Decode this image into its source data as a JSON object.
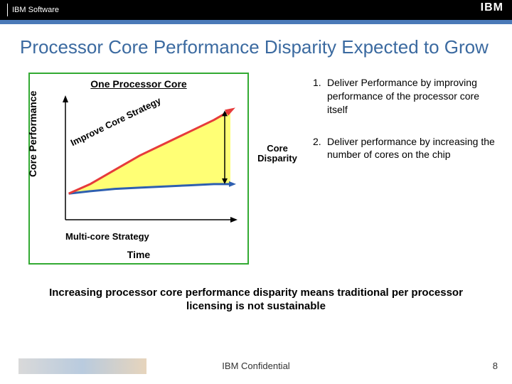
{
  "header": {
    "brand_text": "IBM Software",
    "logo_text": "IBM"
  },
  "title": "Processor Core Performance Disparity Expected to Grow",
  "chart": {
    "type": "line",
    "box_title": "One Processor Core",
    "y_label": "Core Performance",
    "x_label": "Time",
    "upper_curve_label": "Improve Core Strategy",
    "lower_curve_label": "Multi-core Strategy",
    "disparity_label": "Core Disparity",
    "colors": {
      "box_border": "#33aa33",
      "axis": "#000000",
      "upper_curve": "#e63b3b",
      "lower_curve": "#2e5fb0",
      "disparity_fill": "#ffff66",
      "arrow": "#000000",
      "background": "#ffffff"
    },
    "axis": {
      "x_range": [
        0,
        100
      ],
      "y_range": [
        0,
        100
      ],
      "line_width": 1.5
    },
    "upper_curve_points": [
      [
        2,
        78
      ],
      [
        15,
        70
      ],
      [
        30,
        58
      ],
      [
        45,
        46
      ],
      [
        60,
        36
      ],
      [
        75,
        26
      ],
      [
        90,
        16
      ],
      [
        100,
        8
      ]
    ],
    "lower_curve_points": [
      [
        2,
        78
      ],
      [
        15,
        76
      ],
      [
        30,
        74
      ],
      [
        45,
        73
      ],
      [
        60,
        72
      ],
      [
        75,
        71
      ],
      [
        90,
        70
      ],
      [
        100,
        70
      ]
    ],
    "curve_line_width": 3,
    "arrow_head_size": 8
  },
  "points": [
    {
      "num": "1.",
      "text": "Deliver Performance by improving performance of the processor core itself"
    },
    {
      "num": "2.",
      "text": "Deliver performance by increasing the number of cores on the chip"
    }
  ],
  "bottom_statement": "Increasing processor core performance disparity means traditional per processor licensing is not sustainable",
  "footer": {
    "confidential": "IBM Confidential",
    "page_number": "8"
  }
}
